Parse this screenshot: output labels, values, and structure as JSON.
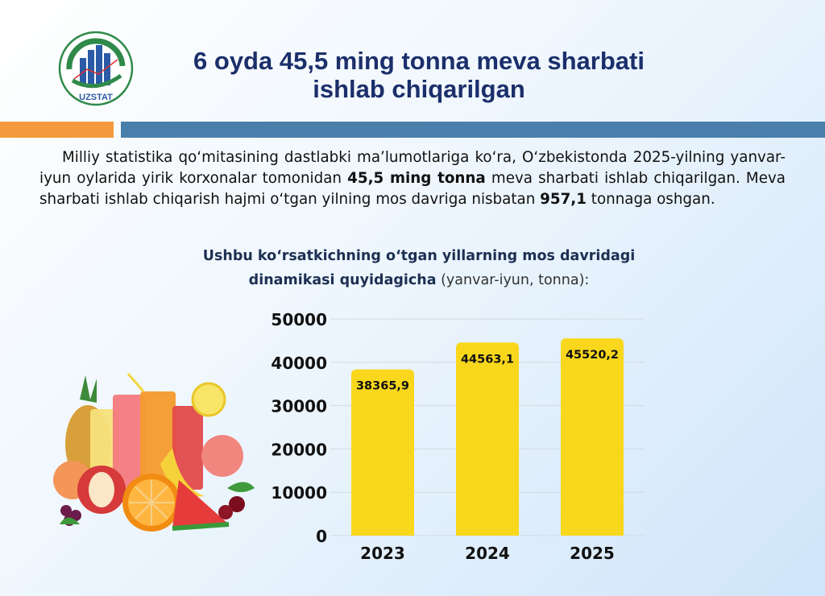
{
  "header": {
    "logo_text": "UZSTAT",
    "title_line1": "6 oyda 45,5 ming tonna meva sharbati",
    "title_line2": "ishlab chiqarilgan"
  },
  "intro": {
    "part1": "Milliy statistika qo‘mitasining dastlabki ma’lumotlariga ko‘ra, O‘zbekistonda 2025-yilning yanvar-iyun oylarida yirik korxonalar tomonidan ",
    "bold1": "45,5 ming tonna",
    "part2": " meva sharbati ishlab chiqarilgan. Meva sharbati ishlab chiqarish hajmi o‘tgan yilning mos davriga nisbatan ",
    "bold2": "957,1",
    "part3": " tonnaga oshgan."
  },
  "subtitle": {
    "line1": "Ushbu ko‘rsatkichning o‘tgan yillarning mos davridagi",
    "line2_bold": "dinamikasi quyidagicha",
    "line2_rest": " (yanvar-iyun, tonna):"
  },
  "illustration": {
    "icon": "fruit-juice-glasses-icon"
  },
  "chart_data": {
    "type": "bar",
    "categories": [
      "2023",
      "2024",
      "2025"
    ],
    "values": [
      38365.9,
      44563.1,
      45520.2
    ],
    "labels": [
      "38365,9",
      "44563,1",
      "45520,2"
    ],
    "yticks": [
      "0",
      "10000",
      "20000",
      "30000",
      "40000",
      "50000"
    ],
    "ylim": [
      0,
      50000
    ],
    "grid": true,
    "bar_color": "#f9d71c"
  }
}
